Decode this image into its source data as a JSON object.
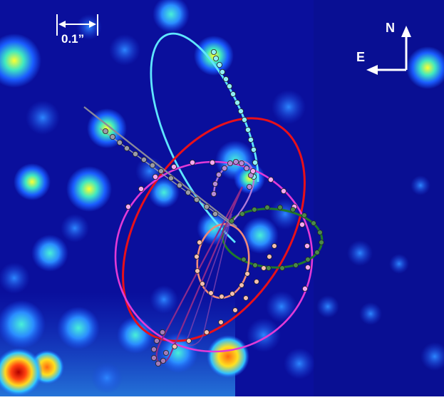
{
  "scale_bar": {
    "label": "0.1”"
  },
  "compass": {
    "north_label": "N",
    "east_label": "E"
  },
  "colors": {
    "sky_background": "#0a0f9c",
    "cyan_orbit": "#5fe6ff",
    "red_orbit": "#e8101a",
    "magenta_orbit": "#e23ad6",
    "green_orbit": "#1f7a2a",
    "salmon_orbit": "#f08a7a",
    "purple_orbit": "#8b2a8c",
    "gray_orbit": "#8a8a9a",
    "compass_white": "#ffffff"
  }
}
